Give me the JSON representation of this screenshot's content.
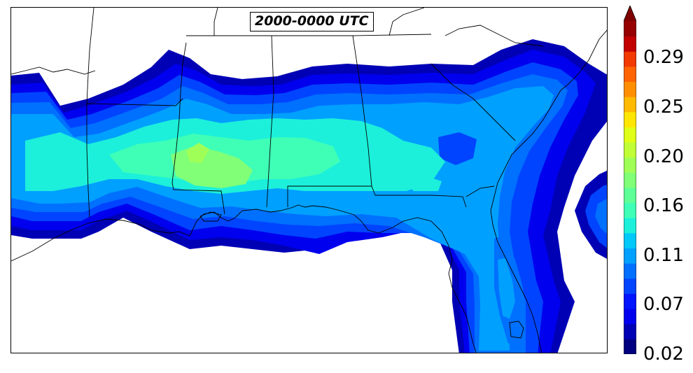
{
  "title": "2000-0000 UTC",
  "colorbar": {
    "tick_labels": [
      "0.29",
      "0.25",
      "0.20",
      "0.16",
      "0.11",
      "0.07",
      "0.02"
    ],
    "extend": "max",
    "colormap": "jet",
    "levels": [
      0.02,
      0.04,
      0.05,
      0.07,
      0.08,
      0.09,
      0.11,
      0.12,
      0.13,
      0.15,
      0.16,
      0.17,
      0.19,
      0.2,
      0.21,
      0.23,
      0.24,
      0.25,
      0.27,
      0.28,
      0.29,
      0.31
    ],
    "colors": [
      "#00007f",
      "#0000b5",
      "#0000ee",
      "#0014ff",
      "#0044ff",
      "#0070ff",
      "#00a0ff",
      "#00c8f8",
      "#1cf0da",
      "#3fffb7",
      "#5fff97",
      "#80ff77",
      "#a0ff57",
      "#c0ff37",
      "#e0ff17",
      "#ffe600",
      "#ffba00",
      "#ff8f00",
      "#ff6400",
      "#f23900",
      "#c20000",
      "#960000",
      "#7f0000"
    ]
  },
  "map": {
    "region": "Southeastern United States",
    "fill_colors": {
      "level1": "#0000b5",
      "level2": "#0000ee",
      "level3": "#0044ff",
      "level4": "#0070ff",
      "level5": "#00a0ff",
      "level6": "#1cf0da",
      "level7": "#3fffb7",
      "level8": "#80ff77",
      "level9": "#a0ff57"
    }
  }
}
